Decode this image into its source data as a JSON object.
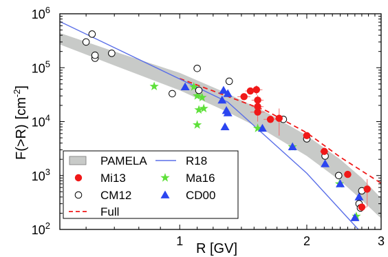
{
  "chart_data": {
    "type": "scatter",
    "xlabel": "R [GV]",
    "ylabel_main": "F(>R)",
    "ylabel_unit": "[cm",
    "ylabel_exp": "-2",
    "ylabel_close": "]",
    "x_scale": "log",
    "y_scale": "log",
    "xlim": [
      0.52,
      3.0
    ],
    "ylim": [
      100,
      1000000
    ],
    "x_ticks": [
      {
        "value": 1,
        "label": "1"
      },
      {
        "value": 2,
        "label": "2"
      },
      {
        "value": 3,
        "label": "3"
      }
    ],
    "y_ticks": [
      {
        "value": 100,
        "base": "10",
        "exp": "2"
      },
      {
        "value": 1000,
        "base": "10",
        "exp": "3"
      },
      {
        "value": 10000,
        "base": "10",
        "exp": "4"
      },
      {
        "value": 100000,
        "base": "10",
        "exp": "5"
      },
      {
        "value": 1000000,
        "base": "10",
        "exp": "6"
      }
    ],
    "colors": {
      "pamela": "#c8cac8",
      "red": "#f01818",
      "blue": "#2b45f0",
      "green": "#5ee03a",
      "r18_line": "#5a6fe8"
    },
    "legend": {
      "placement": "bottom-left",
      "items": [
        {
          "label": "PAMELA",
          "marker": "band"
        },
        {
          "label": "R18",
          "marker": "solid-line"
        },
        {
          "label": "Mi13",
          "marker": "filled-circle"
        },
        {
          "label": "Ma16",
          "marker": "star"
        },
        {
          "label": "CM12",
          "marker": "open-circle"
        },
        {
          "label": "CD00",
          "marker": "triangle"
        },
        {
          "label": "Full",
          "marker": "dashed-line"
        }
      ]
    },
    "series": [
      {
        "name": "PAMELA",
        "kind": "band",
        "x": [
          0.52,
          0.7,
          1.0,
          1.3,
          1.6,
          2.0,
          2.4,
          2.7,
          3.0
        ],
        "upper": [
          440000,
          200000,
          80000,
          33000,
          15000,
          5500,
          2000,
          900,
          380
        ],
        "lower": [
          270000,
          110000,
          38000,
          15000,
          6600,
          2300,
          800,
          350,
          160
        ]
      },
      {
        "name": "R18",
        "kind": "line",
        "x": [
          0.52,
          1.3,
          2.0,
          2.65
        ],
        "y": [
          720000,
          23000,
          1100,
          100
        ]
      },
      {
        "name": "Full",
        "kind": "dashed-line",
        "x": [
          1.0,
          1.6,
          2.0,
          2.4,
          3.0
        ],
        "y": [
          63000,
          16000,
          6200,
          2200,
          720
        ]
      },
      {
        "name": "Mi13",
        "kind": "filled-circle",
        "points": [
          {
            "x": 1.42,
            "y": 29000,
            "xe": 0.05
          },
          {
            "x": 1.47,
            "y": 37000,
            "xe": 0.04
          },
          {
            "x": 1.52,
            "y": 39000,
            "xe": 0.05,
            "ye": 8000
          },
          {
            "x": 1.53,
            "y": 25000,
            "xe": 0.05,
            "ye": 6000
          },
          {
            "x": 1.53,
            "y": 19000,
            "xe": 0.05
          },
          {
            "x": 1.53,
            "y": 15000,
            "xe": 0.06,
            "ye": 5000
          },
          {
            "x": 1.64,
            "y": 11000,
            "xe": 0.06
          },
          {
            "x": 1.72,
            "y": 11500,
            "xe": 0.04,
            "ye": 6000
          },
          {
            "x": 2.0,
            "y": 5500,
            "xe": 0.04
          },
          {
            "x": 2.2,
            "y": 2800,
            "xe": 0.05
          },
          {
            "x": 2.5,
            "y": 1050,
            "xe": 0.05
          },
          {
            "x": 2.7,
            "y": 260,
            "xe": 0.07
          },
          {
            "x": 2.78,
            "y": 560,
            "xe": 0.06,
            "ye": 300
          }
        ]
      },
      {
        "name": "CM12",
        "kind": "open-circle",
        "points": [
          {
            "x": 0.6,
            "y": 300000
          },
          {
            "x": 0.62,
            "y": 420000
          },
          {
            "x": 0.63,
            "y": 150000
          },
          {
            "x": 0.63,
            "y": 170000
          },
          {
            "x": 0.69,
            "y": 185000
          },
          {
            "x": 0.96,
            "y": 33000
          },
          {
            "x": 1.1,
            "y": 97000
          },
          {
            "x": 1.11,
            "y": 38000
          },
          {
            "x": 1.31,
            "y": 56000
          },
          {
            "x": 1.76,
            "y": 11000
          },
          {
            "x": 2.0,
            "y": 4800
          },
          {
            "x": 2.21,
            "y": 2300
          },
          {
            "x": 2.38,
            "y": 1000
          },
          {
            "x": 2.66,
            "y": 300
          },
          {
            "x": 2.68,
            "y": 250
          },
          {
            "x": 2.7,
            "y": 520
          }
        ]
      },
      {
        "name": "Ma16",
        "kind": "star",
        "points": [
          {
            "x": 0.87,
            "y": 45000
          },
          {
            "x": 1.08,
            "y": 44000
          },
          {
            "x": 1.1,
            "y": 30000
          },
          {
            "x": 1.11,
            "y": 16500
          },
          {
            "x": 1.13,
            "y": 28000
          },
          {
            "x": 1.14,
            "y": 17500
          },
          {
            "x": 1.1,
            "y": 8700
          },
          {
            "x": 1.53,
            "y": 7500
          },
          {
            "x": 1.85,
            "y": 3400
          },
          {
            "x": 2.39,
            "y": 700
          },
          {
            "x": 2.62,
            "y": 175
          }
        ]
      },
      {
        "name": "CD00",
        "kind": "triangle",
        "points": [
          {
            "x": 1.03,
            "y": 44000
          },
          {
            "x": 1.27,
            "y": 38000
          },
          {
            "x": 1.3,
            "y": 33000
          },
          {
            "x": 1.26,
            "y": 25000
          },
          {
            "x": 1.29,
            "y": 16000
          },
          {
            "x": 1.3,
            "y": 14500
          },
          {
            "x": 1.28,
            "y": 8000
          },
          {
            "x": 1.57,
            "y": 7500
          },
          {
            "x": 1.85,
            "y": 3400
          },
          {
            "x": 2.21,
            "y": 1650
          },
          {
            "x": 2.4,
            "y": 700
          },
          {
            "x": 2.66,
            "y": 400
          },
          {
            "x": 2.6,
            "y": 165
          }
        ]
      }
    ]
  }
}
